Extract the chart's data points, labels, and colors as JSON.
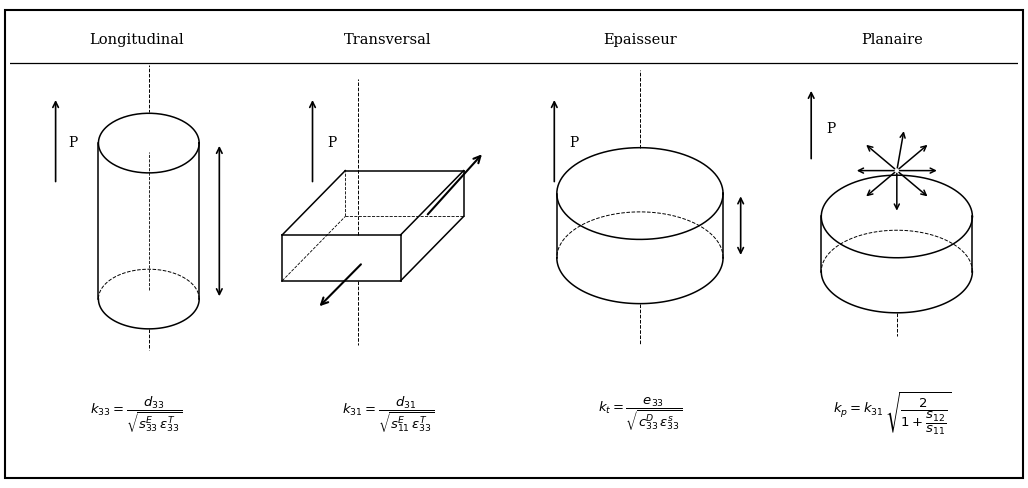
{
  "columns": [
    "Longitudinal",
    "Transversal",
    "Epaisseur",
    "Planaire"
  ],
  "bg_color": "#ffffff",
  "line_color": "#000000"
}
